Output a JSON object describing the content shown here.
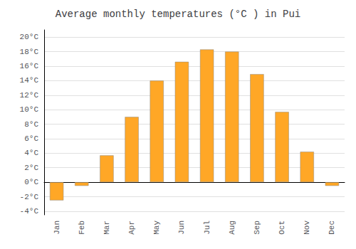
{
  "chart_data": {
    "type": "bar",
    "title": "Average monthly temperatures (°C ) in Pui",
    "categories": [
      "Jan",
      "Feb",
      "Mar",
      "Apr",
      "May",
      "Jun",
      "Jul",
      "Aug",
      "Sep",
      "Oct",
      "Nov",
      "Dec"
    ],
    "values": [
      -2.5,
      -0.5,
      3.7,
      9.0,
      14.0,
      16.6,
      18.3,
      18.0,
      14.9,
      9.7,
      4.2,
      -0.5
    ],
    "color": "#FFA726",
    "ylim": [
      -4.5,
      21
    ],
    "yticks": [
      {
        "value": -4,
        "label": "-4°C"
      },
      {
        "value": -2,
        "label": "-2°C"
      },
      {
        "value": 0,
        "label": "0°C"
      },
      {
        "value": 2,
        "label": "2°C"
      },
      {
        "value": 4,
        "label": "4°C"
      },
      {
        "value": 6,
        "label": "6°C"
      },
      {
        "value": 8,
        "label": "8°C"
      },
      {
        "value": 10,
        "label": "10°C"
      },
      {
        "value": 12,
        "label": "12°C"
      },
      {
        "value": 14,
        "label": "14°C"
      },
      {
        "value": 16,
        "label": "16°C"
      },
      {
        "value": 18,
        "label": "18°C"
      },
      {
        "value": 20,
        "label": "20°C"
      }
    ],
    "grid": true
  }
}
